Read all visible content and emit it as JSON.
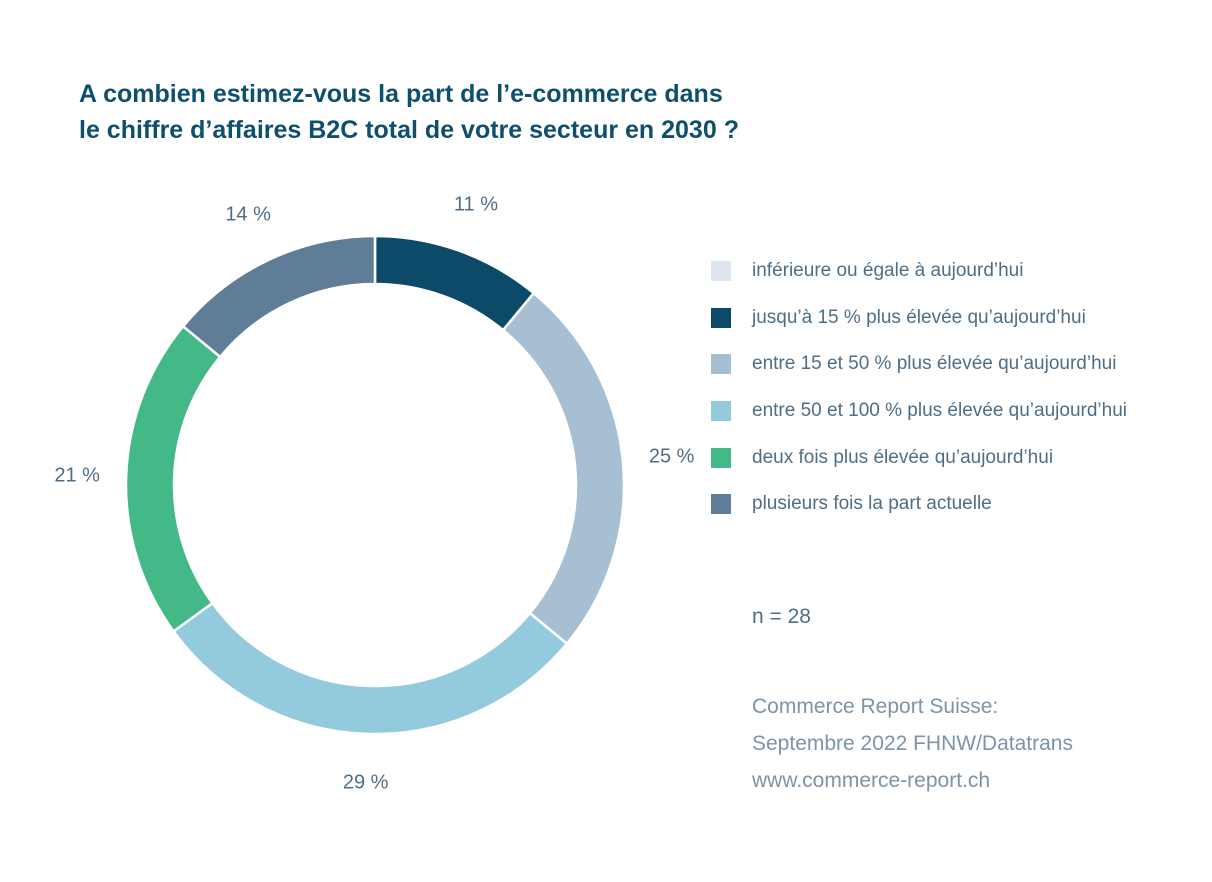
{
  "title": {
    "line1": "A combien estimez-vous la part de l’e-commerce dans",
    "line2": "le chiffre d’affaires B2C total de votre secteur en 2030 ?"
  },
  "chart_data": {
    "type": "pie",
    "donut": true,
    "title": "A combien estimez-vous la part de l’e-commerce dans le chiffre d’affaires B2C total de votre secteur en 2030 ?",
    "slices": [
      {
        "label": "inférieure ou égale à aujourd’hui",
        "value": 0,
        "color": "#dfe5ec",
        "value_label": ""
      },
      {
        "label": "jusqu’à 15 % plus élevée qu’aujourd’hui",
        "value": 11,
        "color": "#0d4a69",
        "value_label": "11 %"
      },
      {
        "label": "entre 15 et 50 % plus élevée qu’aujourd’hui",
        "value": 25,
        "color": "#a7bfd3",
        "value_label": "25 %"
      },
      {
        "label": "entre 50 et 100 % plus élevée qu’aujourd’hui",
        "value": 29,
        "color": "#94cadd",
        "value_label": "29 %"
      },
      {
        "label": "deux fois plus élevée qu’aujourd’hui",
        "value": 21,
        "color": "#42b987",
        "value_label": "21 %"
      },
      {
        "label": "plusieurs fois la part actuelle",
        "value": 14,
        "color": "#5f7d97",
        "value_label": "14 %"
      }
    ],
    "legend_position": "right"
  },
  "note": "n = 28",
  "source": {
    "line1": "Commerce Report Suisse:",
    "line2": "Septembre 2022 FHNW/Datatrans",
    "line3": "www.commerce-report.ch"
  }
}
